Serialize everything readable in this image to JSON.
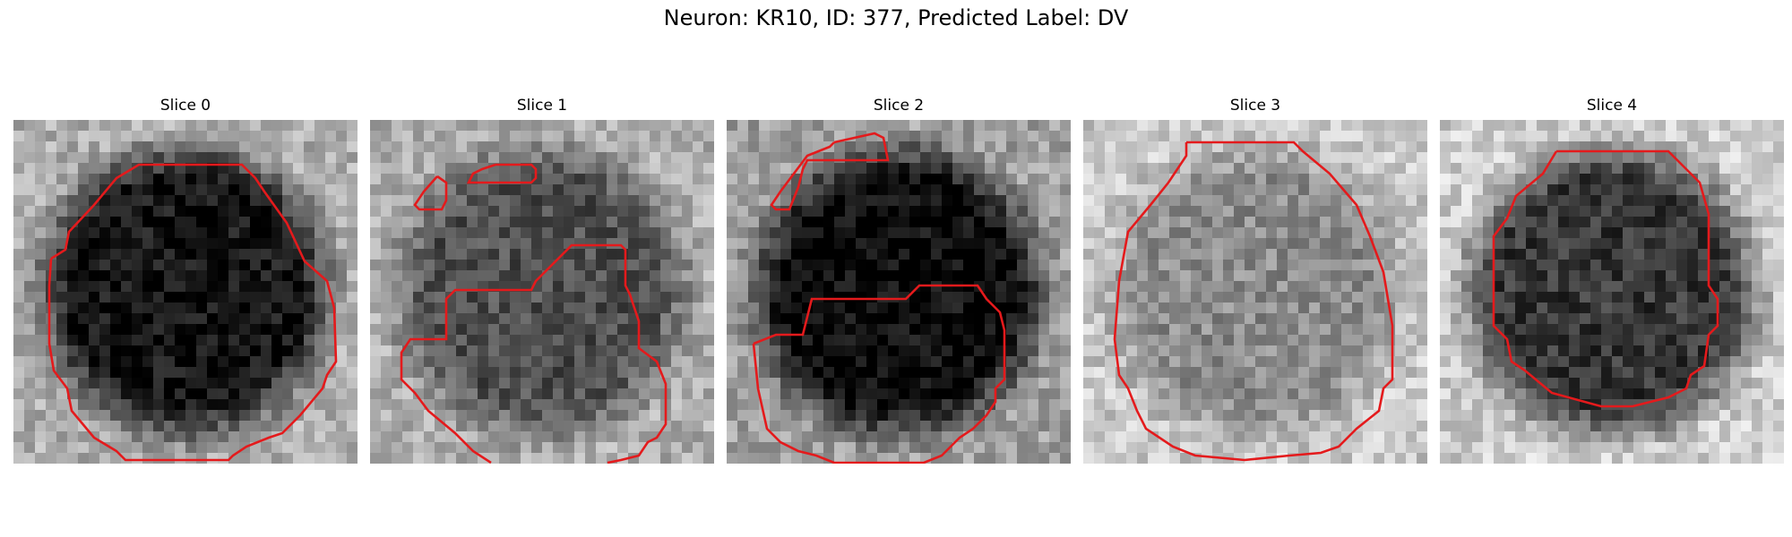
{
  "figure": {
    "title": "Neuron: KR10, ID: 377, Predicted Label: DV"
  },
  "panels": [
    {
      "title": "Slice 0",
      "center_gray": 20,
      "surround_gray": 175,
      "contour_color": "#e41a1c"
    },
    {
      "title": "Slice 1",
      "center_gray": 80,
      "surround_gray": 175,
      "contour_color": "#e41a1c"
    },
    {
      "title": "Slice 2",
      "center_gray": 10,
      "surround_gray": 160,
      "contour_color": "#e41a1c"
    },
    {
      "title": "Slice 3",
      "center_gray": 140,
      "surround_gray": 200,
      "contour_color": "#e41a1c"
    },
    {
      "title": "Slice 4",
      "center_gray": 55,
      "surround_gray": 205,
      "contour_color": "#e41a1c"
    }
  ],
  "colors": {
    "contour": "#e41a1c",
    "background": "#ffffff"
  },
  "image_kind": "grayscale microscopy patches with red ROI contours"
}
